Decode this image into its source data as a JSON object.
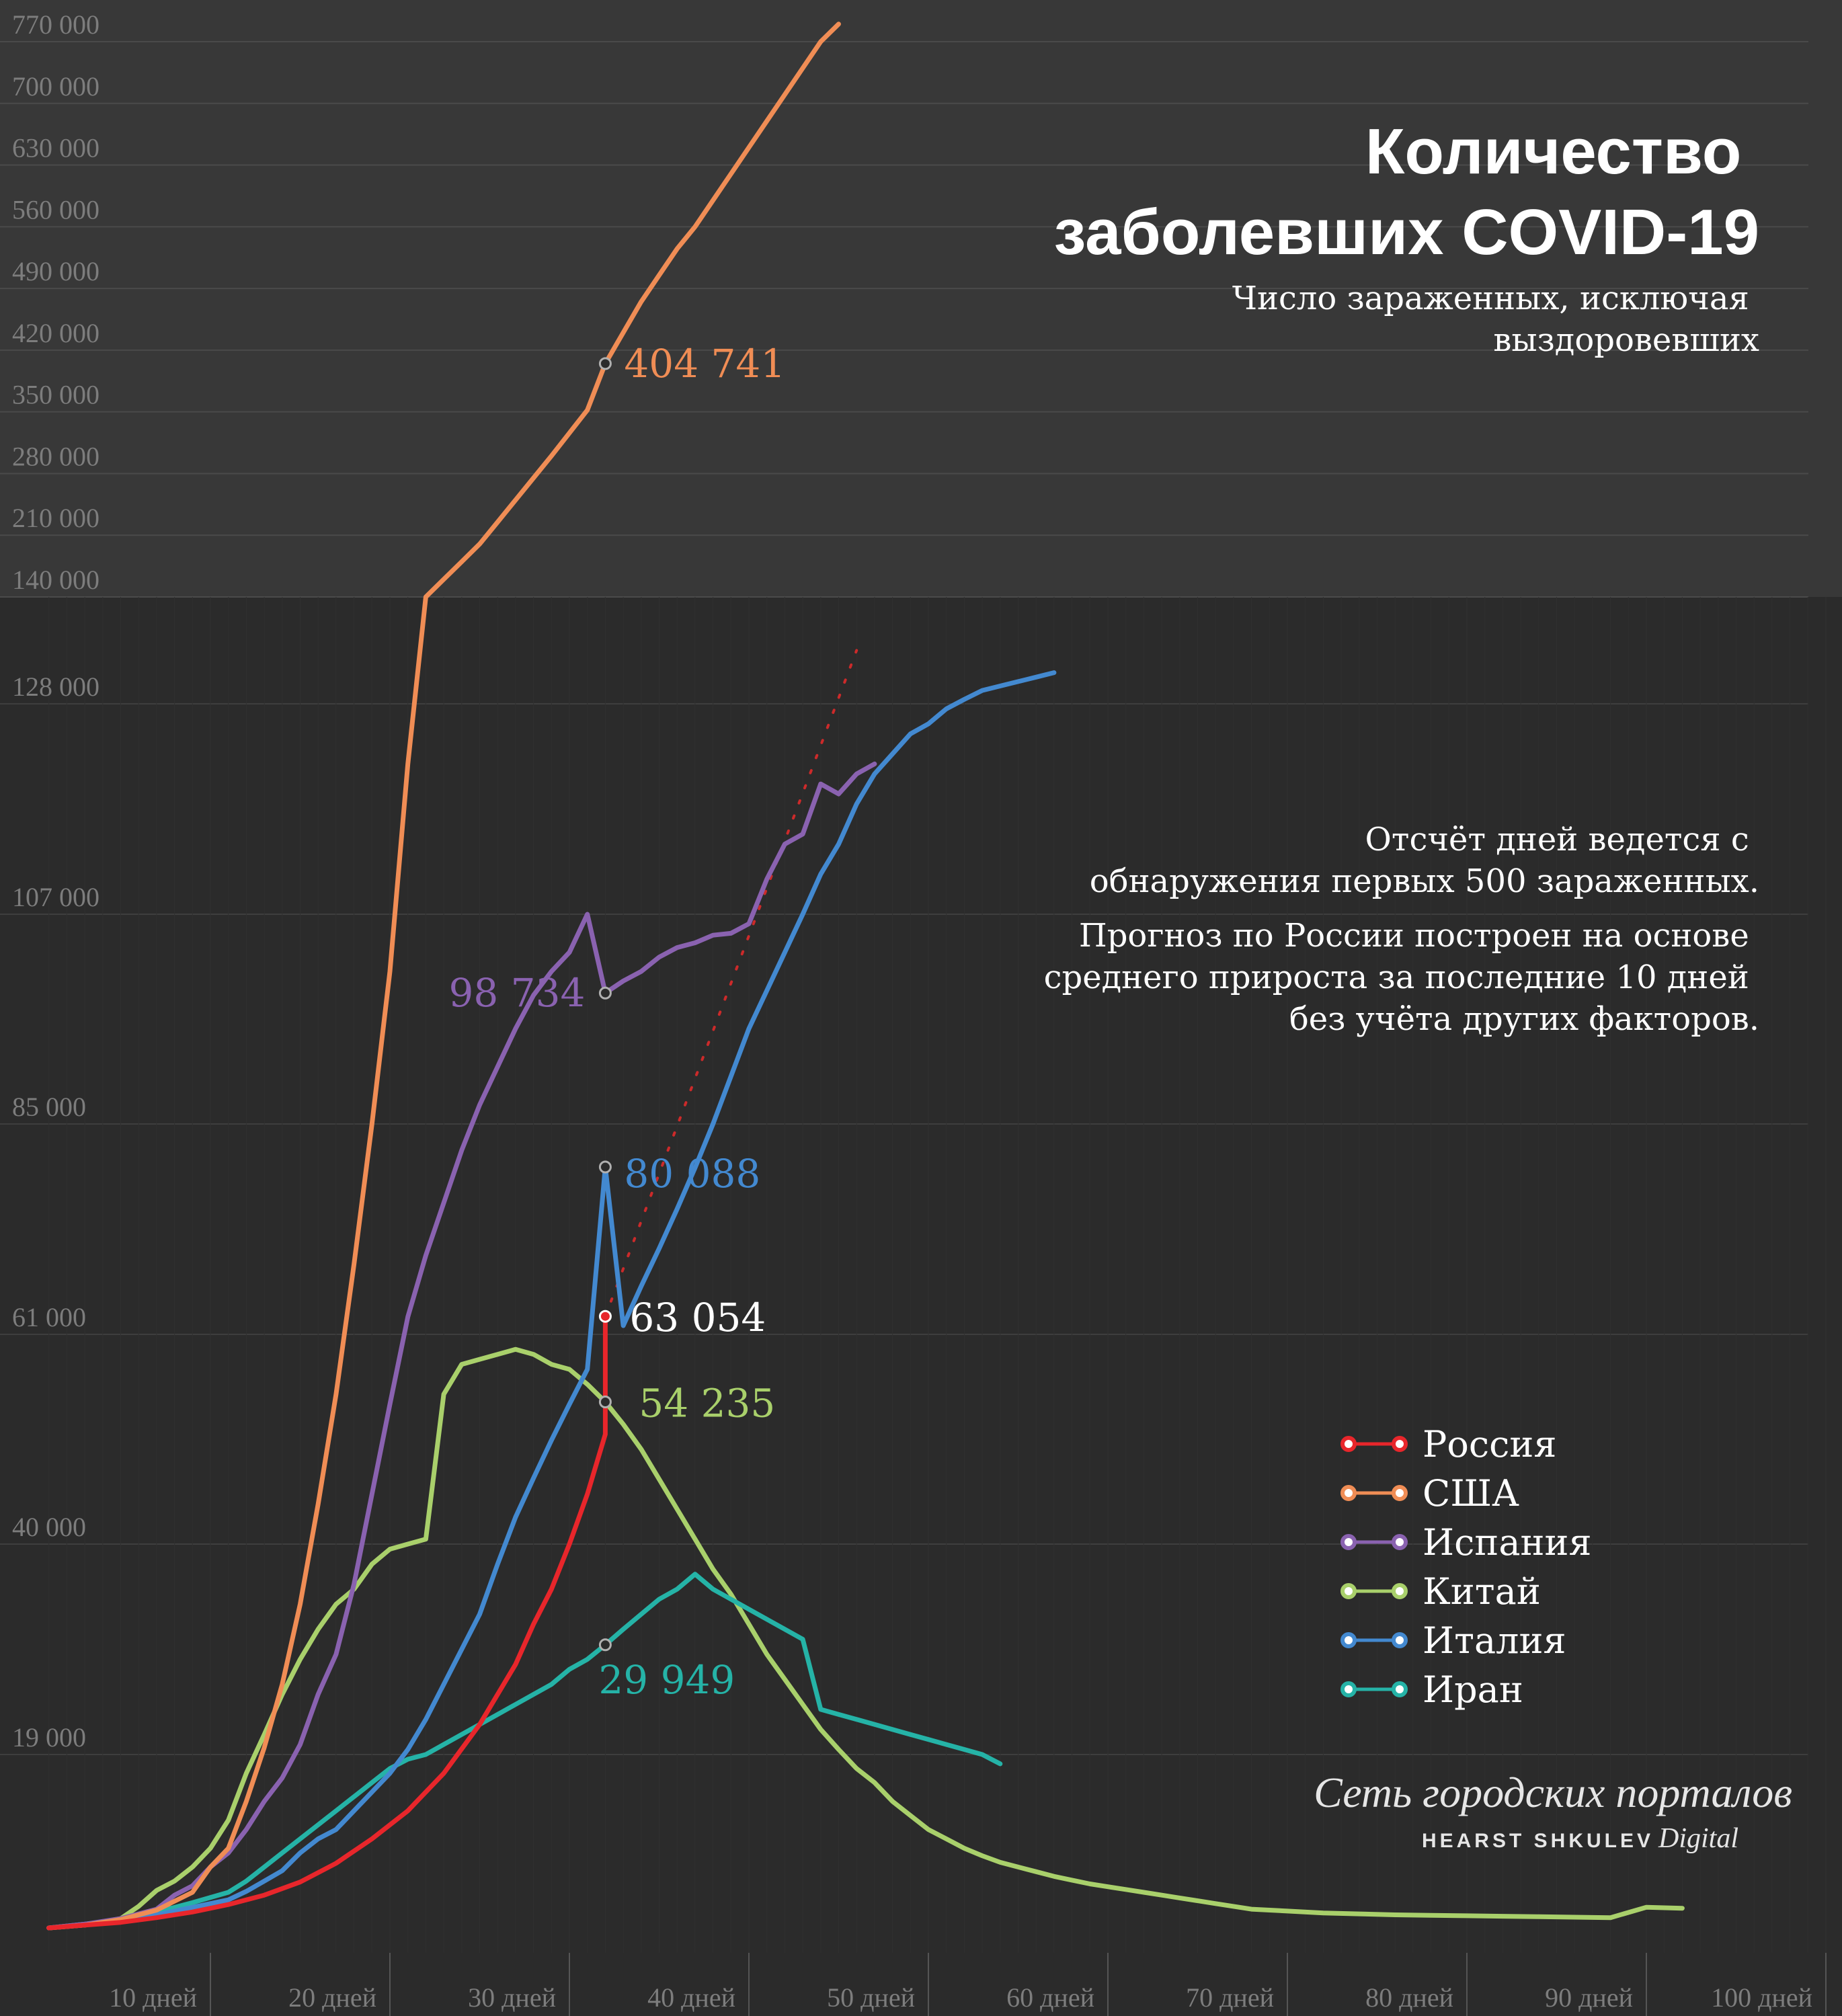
{
  "chart_data": {
    "type": "line",
    "title": "Количество заболевших COVID-19",
    "subtitle": "Число зараженных, исключая выздоровевших",
    "notes": [
      "Отсчёт дней ведется с обнаружения первых 500 зараженных.",
      "Прогноз по России построен на основе среднего прироста за последние 10 дней без учёта других факторов."
    ],
    "x_ticks": [
      "10 дней",
      "20 дней",
      "30 дней",
      "40 дней",
      "50 дней",
      "60 дней",
      "70 дней",
      "80 дней",
      "90 дней",
      "100 дней"
    ],
    "y_ticks_upper": [
      "770 000",
      "700 000",
      "630 000",
      "560 000",
      "490 000",
      "420 000",
      "350 000",
      "280 000",
      "210 000",
      "140 000"
    ],
    "y_ticks_lower": [
      "128 000",
      "107 000",
      "85 000",
      "61 000",
      "40 000",
      "19 000"
    ],
    "colors": {
      "russia": "#e8262b",
      "usa": "#f08d55",
      "spain": "#8a62b0",
      "china": "#a9d06b",
      "italy": "#4389d0",
      "iran": "#25b3a7",
      "forecast": "#cc2a2a"
    },
    "series": [
      {
        "key": "russia",
        "name": "Россия",
        "end_label": "63 054",
        "end_x": 32,
        "end_y": 63054,
        "points": [
          [
            1,
            500
          ],
          [
            3,
            800
          ],
          [
            5,
            1100
          ],
          [
            7,
            1600
          ],
          [
            9,
            2200
          ],
          [
            11,
            3000
          ],
          [
            13,
            4000
          ],
          [
            15,
            5400
          ],
          [
            17,
            7400
          ],
          [
            19,
            10000
          ],
          [
            21,
            13000
          ],
          [
            23,
            17000
          ],
          [
            25,
            22000
          ],
          [
            27,
            28000
          ],
          [
            28,
            32000
          ],
          [
            29,
            35500
          ],
          [
            30,
            40000
          ],
          [
            31,
            45000
          ],
          [
            32,
            51000
          ],
          [
            32,
            63054
          ]
        ]
      },
      {
        "key": "usa",
        "name": "США",
        "end_label": "404 741",
        "end_x": 32,
        "end_y": 404741,
        "points": [
          [
            1,
            500
          ],
          [
            3,
            800
          ],
          [
            5,
            1400
          ],
          [
            7,
            2400
          ],
          [
            9,
            4300
          ],
          [
            10,
            7000
          ],
          [
            11,
            9000
          ],
          [
            12,
            14000
          ],
          [
            13,
            19700
          ],
          [
            14,
            26000
          ],
          [
            15,
            34000
          ],
          [
            16,
            44000
          ],
          [
            17,
            55000
          ],
          [
            18,
            69000
          ],
          [
            19,
            85000
          ],
          [
            20,
            101000
          ],
          [
            21,
            122000
          ],
          [
            22,
            140000
          ],
          [
            23,
            160000
          ],
          [
            24,
            180000
          ],
          [
            25,
            200000
          ],
          [
            26,
            225000
          ],
          [
            27,
            250000
          ],
          [
            28,
            275000
          ],
          [
            29,
            300000
          ],
          [
            30,
            326000
          ],
          [
            31,
            352000
          ],
          [
            32,
            404741
          ],
          [
            33,
            440000
          ],
          [
            34,
            475000
          ],
          [
            35,
            505000
          ],
          [
            36,
            535000
          ],
          [
            37,
            560000
          ],
          [
            38,
            590000
          ],
          [
            39,
            620000
          ],
          [
            40,
            650000
          ],
          [
            41,
            680000
          ],
          [
            42,
            710000
          ],
          [
            43,
            740000
          ],
          [
            44,
            770000
          ],
          [
            45,
            790000
          ]
        ]
      },
      {
        "key": "spain",
        "name": "Испания",
        "end_label": "98 734",
        "end_x": 32,
        "end_y": 98734,
        "points": [
          [
            1,
            500
          ],
          [
            3,
            900
          ],
          [
            5,
            1500
          ],
          [
            7,
            2500
          ],
          [
            8,
            4000
          ],
          [
            9,
            5000
          ],
          [
            10,
            7000
          ],
          [
            11,
            8500
          ],
          [
            12,
            11000
          ],
          [
            13,
            14000
          ],
          [
            14,
            16500
          ],
          [
            15,
            20000
          ],
          [
            16,
            25000
          ],
          [
            17,
            29000
          ],
          [
            18,
            36000
          ],
          [
            19,
            45000
          ],
          [
            20,
            54000
          ],
          [
            21,
            63000
          ],
          [
            22,
            70000
          ],
          [
            23,
            76000
          ],
          [
            24,
            82000
          ],
          [
            25,
            87000
          ],
          [
            26,
            91000
          ],
          [
            27,
            95000
          ],
          [
            28,
            98500
          ],
          [
            29,
            101000
          ],
          [
            30,
            103000
          ],
          [
            31,
            107000
          ],
          [
            32,
            98734
          ],
          [
            33,
            100000
          ],
          [
            34,
            101000
          ],
          [
            35,
            102500
          ],
          [
            36,
            103500
          ],
          [
            37,
            104000
          ],
          [
            38,
            104800
          ],
          [
            39,
            105000
          ],
          [
            40,
            106000
          ],
          [
            41,
            110500
          ],
          [
            42,
            114000
          ],
          [
            43,
            115000
          ],
          [
            44,
            120000
          ],
          [
            45,
            119000
          ],
          [
            46,
            121000
          ],
          [
            47,
            122000
          ]
        ]
      },
      {
        "key": "china",
        "name": "Китай",
        "end_label": "54 235",
        "end_x": 32,
        "end_y": 54235,
        "points": [
          [
            1,
            500
          ],
          [
            3,
            800
          ],
          [
            5,
            1500
          ],
          [
            6,
            2800
          ],
          [
            7,
            4500
          ],
          [
            8,
            5500
          ],
          [
            9,
            7000
          ],
          [
            10,
            9000
          ],
          [
            11,
            12000
          ],
          [
            12,
            17000
          ],
          [
            13,
            21000
          ],
          [
            14,
            25000
          ],
          [
            15,
            28500
          ],
          [
            16,
            31500
          ],
          [
            17,
            34000
          ],
          [
            18,
            35500
          ],
          [
            19,
            38000
          ],
          [
            20,
            39500
          ],
          [
            21,
            40000
          ],
          [
            22,
            40500
          ],
          [
            23,
            55000
          ],
          [
            24,
            58000
          ],
          [
            25,
            58500
          ],
          [
            26,
            59000
          ],
          [
            27,
            59500
          ],
          [
            28,
            59000
          ],
          [
            29,
            58000
          ],
          [
            30,
            57500
          ],
          [
            31,
            56000
          ],
          [
            32,
            54235
          ],
          [
            33,
            52000
          ],
          [
            34,
            49500
          ],
          [
            35,
            46500
          ],
          [
            36,
            43500
          ],
          [
            37,
            40500
          ],
          [
            38,
            37500
          ],
          [
            39,
            35000
          ],
          [
            40,
            32000
          ],
          [
            41,
            29000
          ],
          [
            42,
            26500
          ],
          [
            43,
            24000
          ],
          [
            44,
            21500
          ],
          [
            45,
            19500
          ],
          [
            46,
            17500
          ],
          [
            47,
            16000
          ],
          [
            48,
            14000
          ],
          [
            49,
            12500
          ],
          [
            50,
            11000
          ],
          [
            51,
            10000
          ],
          [
            52,
            9000
          ],
          [
            53,
            8200
          ],
          [
            54,
            7500
          ],
          [
            55,
            7000
          ],
          [
            56,
            6500
          ],
          [
            57,
            6000
          ],
          [
            58,
            5600
          ],
          [
            59,
            5200
          ],
          [
            60,
            4900
          ],
          [
            61,
            4600
          ],
          [
            62,
            4300
          ],
          [
            63,
            4000
          ],
          [
            64,
            3700
          ],
          [
            65,
            3400
          ],
          [
            66,
            3100
          ],
          [
            67,
            2800
          ],
          [
            68,
            2500
          ],
          [
            70,
            2300
          ],
          [
            72,
            2100
          ],
          [
            74,
            2000
          ],
          [
            76,
            1900
          ],
          [
            78,
            1850
          ],
          [
            80,
            1800
          ],
          [
            82,
            1750
          ],
          [
            84,
            1700
          ],
          [
            86,
            1650
          ],
          [
            88,
            1600
          ],
          [
            90,
            2700
          ],
          [
            92,
            2600
          ]
        ]
      },
      {
        "key": "italy",
        "name": "Италия",
        "end_label": "80 088",
        "end_x": 32,
        "end_y": 80088,
        "points": [
          [
            1,
            500
          ],
          [
            3,
            900
          ],
          [
            5,
            1300
          ],
          [
            7,
            1900
          ],
          [
            9,
            2700
          ],
          [
            11,
            3500
          ],
          [
            12,
            4400
          ],
          [
            13,
            5500
          ],
          [
            14,
            6600
          ],
          [
            15,
            8500
          ],
          [
            16,
            10000
          ],
          [
            17,
            11000
          ],
          [
            18,
            13000
          ],
          [
            19,
            15000
          ],
          [
            20,
            17000
          ],
          [
            21,
            19500
          ],
          [
            22,
            22500
          ],
          [
            23,
            26000
          ],
          [
            24,
            29500
          ],
          [
            25,
            33000
          ],
          [
            26,
            38000
          ],
          [
            27,
            42700
          ],
          [
            28,
            46600
          ],
          [
            29,
            50400
          ],
          [
            30,
            54000
          ],
          [
            31,
            57500
          ],
          [
            32,
            80088
          ],
          [
            33,
            62000
          ],
          [
            34,
            66500
          ],
          [
            35,
            70800
          ],
          [
            36,
            75300
          ],
          [
            37,
            80000
          ],
          [
            38,
            85000
          ],
          [
            39,
            90000
          ],
          [
            40,
            95000
          ],
          [
            41,
            99000
          ],
          [
            42,
            103000
          ],
          [
            43,
            107000
          ],
          [
            44,
            111000
          ],
          [
            45,
            114000
          ],
          [
            46,
            118000
          ],
          [
            47,
            121000
          ],
          [
            48,
            123000
          ],
          [
            49,
            125000
          ],
          [
            50,
            126000
          ],
          [
            51,
            127500
          ],
          [
            52,
            128500
          ],
          [
            53,
            129500
          ],
          [
            54,
            130000
          ],
          [
            55,
            130500
          ],
          [
            56,
            131000
          ],
          [
            57,
            131500
          ]
        ]
      },
      {
        "key": "iran",
        "name": "Иран",
        "end_label": "29 949",
        "end_x": 32,
        "end_y": 29949,
        "points": [
          [
            1,
            500
          ],
          [
            3,
            900
          ],
          [
            5,
            1400
          ],
          [
            7,
            2200
          ],
          [
            9,
            3200
          ],
          [
            11,
            4300
          ],
          [
            12,
            5500
          ],
          [
            13,
            7000
          ],
          [
            14,
            8500
          ],
          [
            15,
            10000
          ],
          [
            16,
            11500
          ],
          [
            17,
            13000
          ],
          [
            18,
            14500
          ],
          [
            19,
            16000
          ],
          [
            20,
            17500
          ],
          [
            21,
            18500
          ],
          [
            22,
            19000
          ],
          [
            23,
            20000
          ],
          [
            24,
            21000
          ],
          [
            25,
            22000
          ],
          [
            26,
            23000
          ],
          [
            27,
            24000
          ],
          [
            28,
            25000
          ],
          [
            29,
            26000
          ],
          [
            30,
            27500
          ],
          [
            31,
            28500
          ],
          [
            32,
            29949
          ],
          [
            33,
            31500
          ],
          [
            34,
            33000
          ],
          [
            35,
            34500
          ],
          [
            36,
            35500
          ],
          [
            37,
            37000
          ],
          [
            38,
            35500
          ],
          [
            39,
            34500
          ],
          [
            40,
            33500
          ],
          [
            41,
            32500
          ],
          [
            42,
            31500
          ],
          [
            43,
            30500
          ],
          [
            44,
            23500
          ],
          [
            45,
            23000
          ],
          [
            46,
            22500
          ],
          [
            47,
            22000
          ],
          [
            48,
            21500
          ],
          [
            49,
            21000
          ],
          [
            50,
            20500
          ],
          [
            51,
            20000
          ],
          [
            52,
            19500
          ],
          [
            53,
            19000
          ],
          [
            54,
            18000
          ]
        ]
      }
    ],
    "forecast": {
      "name": "Россия (прогноз)",
      "points": [
        [
          32,
          63054
        ],
        [
          46,
          134000
        ]
      ]
    }
  },
  "branding": {
    "line1": "Сеть городских порталов",
    "line2": "HEARST SHKULEV",
    "line3": "Digital"
  }
}
